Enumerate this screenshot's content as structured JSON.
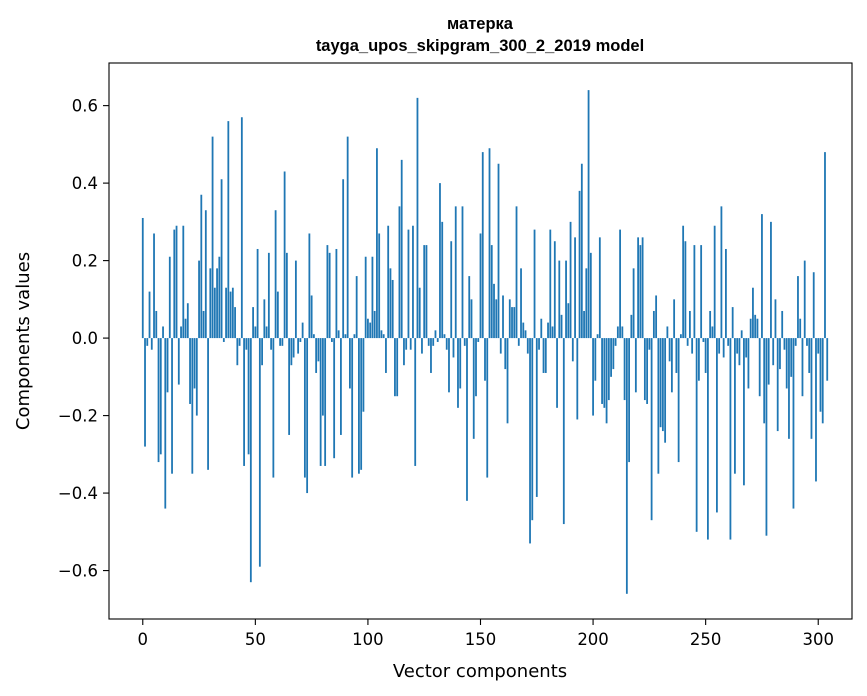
{
  "chart_data": {
    "type": "bar",
    "title": "матерка",
    "subtitle": "tayga_upos_skipgram_300_2_2019 model",
    "xlabel": "Vector components",
    "ylabel": "Components values",
    "xlim": [
      -15,
      315
    ],
    "ylim": [
      -0.725,
      0.71
    ],
    "xticks": [
      0,
      50,
      100,
      150,
      200,
      250,
      300
    ],
    "xtick_labels": [
      "0",
      "50",
      "100",
      "150",
      "200",
      "250",
      "300"
    ],
    "yticks": [
      -0.6,
      -0.4,
      -0.2,
      0.0,
      0.2,
      0.4,
      0.6
    ],
    "ytick_labels": [
      "−0.6",
      "−0.4",
      "−0.2",
      "0.0",
      "0.2",
      "0.4",
      "0.6"
    ],
    "bar_color": "#1f77b4",
    "grid": false,
    "legend": "none",
    "values": [
      0.31,
      -0.28,
      -0.02,
      0.12,
      -0.03,
      0.27,
      0.07,
      -0.32,
      -0.3,
      0.03,
      -0.44,
      -0.14,
      0.21,
      -0.35,
      0.28,
      0.29,
      -0.12,
      0.03,
      0.29,
      0.05,
      0.09,
      -0.17,
      -0.35,
      -0.13,
      -0.2,
      0.2,
      0.37,
      0.07,
      0.33,
      -0.34,
      0.18,
      0.52,
      0.13,
      0.18,
      0.21,
      0.41,
      -0.01,
      0.13,
      0.56,
      0.12,
      0.13,
      0.08,
      -0.07,
      -0.02,
      0.57,
      -0.33,
      -0.03,
      -0.3,
      -0.63,
      0.08,
      0.03,
      0.23,
      -0.59,
      -0.07,
      0.1,
      0.03,
      0.22,
      -0.03,
      -0.36,
      0.33,
      0.12,
      -0.02,
      -0.02,
      0.43,
      0.22,
      -0.25,
      -0.07,
      -0.05,
      0.2,
      -0.04,
      -0.01,
      0.04,
      -0.36,
      -0.4,
      0.27,
      0.11,
      0.01,
      -0.09,
      -0.06,
      -0.33,
      -0.2,
      -0.33,
      0.24,
      0.22,
      -0.01,
      -0.31,
      0.23,
      0.02,
      -0.25,
      0.41,
      0.01,
      0.52,
      -0.13,
      -0.36,
      0.01,
      0.16,
      -0.35,
      -0.34,
      -0.19,
      0.21,
      0.05,
      0.04,
      0.21,
      0.07,
      0.49,
      0.27,
      0.02,
      0.01,
      -0.09,
      0.29,
      0.18,
      0.15,
      -0.15,
      -0.15,
      0.34,
      0.46,
      -0.07,
      -0.03,
      0.28,
      -0.03,
      0.29,
      -0.33,
      0.62,
      0.13,
      -0.04,
      0.24,
      0.24,
      -0.02,
      -0.09,
      -0.02,
      0.02,
      -0.01,
      0.4,
      0.3,
      0.01,
      -0.03,
      -0.14,
      0.25,
      -0.05,
      0.34,
      -0.18,
      -0.13,
      0.34,
      -0.02,
      -0.42,
      0.16,
      0.1,
      -0.26,
      -0.15,
      -0.01,
      0.27,
      0.48,
      -0.11,
      -0.36,
      0.49,
      0.24,
      0.14,
      0.1,
      0.45,
      -0.04,
      0.11,
      -0.08,
      -0.22,
      0.1,
      0.08,
      0.08,
      0.34,
      -0.02,
      0.18,
      0.04,
      0.02,
      -0.04,
      -0.53,
      -0.47,
      0.28,
      -0.41,
      -0.03,
      0.05,
      -0.09,
      -0.09,
      0.04,
      0.28,
      0.03,
      0.25,
      -0.18,
      0.2,
      0.06,
      -0.48,
      0.2,
      0.09,
      0.3,
      -0.06,
      0.26,
      -0.21,
      0.38,
      0.45,
      0.07,
      0.18,
      0.64,
      0.22,
      -0.2,
      -0.11,
      0.01,
      0.26,
      -0.17,
      -0.18,
      -0.22,
      -0.16,
      -0.1,
      -0.08,
      -0.02,
      0.03,
      0.28,
      0.03,
      -0.16,
      -0.66,
      -0.32,
      0.06,
      0.18,
      -0.14,
      0.26,
      0.24,
      0.26,
      -0.16,
      -0.17,
      -0.03,
      -0.47,
      0.07,
      0.11,
      -0.35,
      -0.23,
      -0.24,
      -0.27,
      0.03,
      -0.06,
      -0.14,
      0.1,
      -0.09,
      -0.32,
      0.01,
      0.29,
      0.25,
      -0.02,
      0.07,
      -0.04,
      0.24,
      -0.5,
      -0.11,
      0.24,
      -0.01,
      -0.09,
      -0.52,
      0.07,
      0.03,
      0.29,
      -0.45,
      -0.04,
      0.34,
      -0.05,
      0.23,
      -0.02,
      -0.52,
      0.08,
      -0.35,
      -0.04,
      -0.07,
      0.02,
      -0.38,
      -0.05,
      -0.13,
      0.05,
      0.13,
      0.06,
      0.05,
      -0.15,
      0.32,
      -0.22,
      -0.51,
      -0.12,
      0.3,
      -0.07,
      0.1,
      -0.24,
      -0.08,
      0.07,
      -0.03,
      -0.13,
      -0.26,
      -0.1,
      -0.44,
      -0.02,
      0.16,
      0.05,
      -0.15,
      0.2,
      -0.02,
      -0.09,
      -0.26,
      0.17,
      -0.37,
      -0.04,
      -0.19,
      -0.22,
      0.48,
      -0.11
    ]
  }
}
